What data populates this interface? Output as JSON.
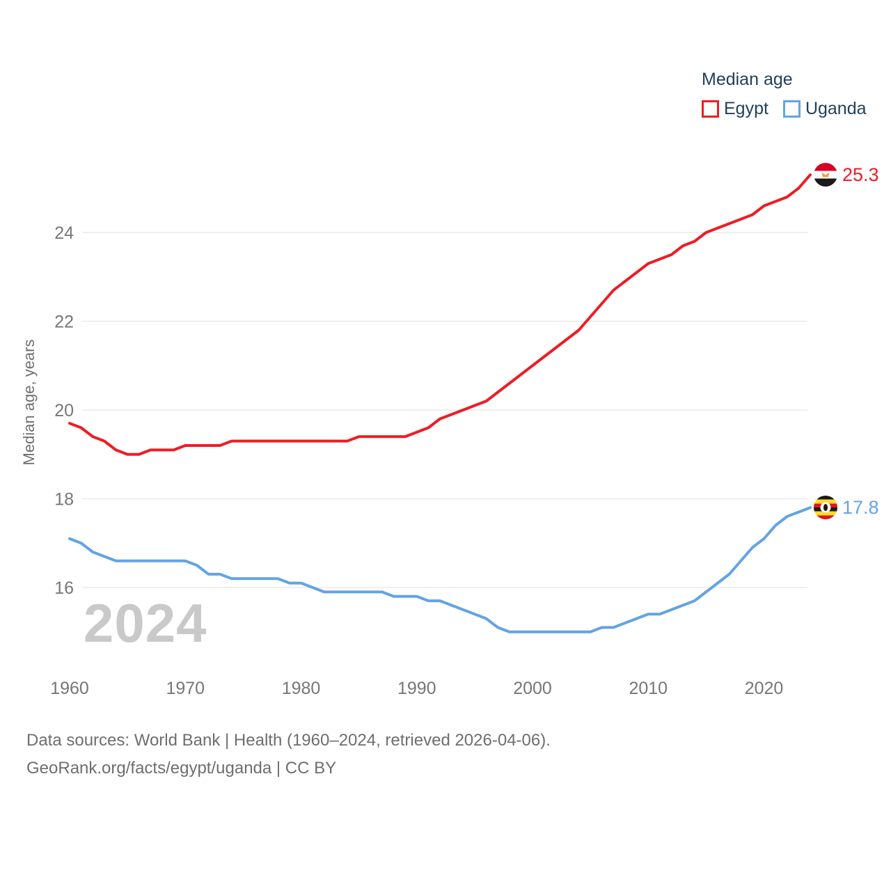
{
  "page": {
    "background": "#ffffff"
  },
  "legend": {
    "title": "Median age",
    "items": [
      {
        "label": "Egypt",
        "color": "#ee1c25"
      },
      {
        "label": "Uganda",
        "color": "#64a3e4"
      }
    ]
  },
  "watermark": "2024",
  "end_labels": [
    {
      "series": "Egypt",
      "value": "25.3",
      "color": "#ee1c25",
      "flag": "egypt-flag-icon"
    },
    {
      "series": "Uganda",
      "value": "17.8",
      "color": "#64a3e4",
      "flag": "uganda-flag-icon"
    }
  ],
  "footer": {
    "line1": "Data sources: World Bank | Health (1960–2024, retrieved 2026-04-06).",
    "line2": "GeoRank.org/facts/egypt/uganda | CC BY"
  },
  "chart_data": {
    "type": "line",
    "title": "Median age",
    "xlabel": "",
    "ylabel": "Median age, years",
    "x_range": [
      1960,
      2024
    ],
    "y_view_range": [
      14.6,
      25.7
    ],
    "x_ticks": [
      1960,
      1970,
      1980,
      1990,
      2000,
      2010,
      2020
    ],
    "y_ticks": [
      16,
      18,
      20,
      22,
      24
    ],
    "grid": "horizontal",
    "legend_position": "top-right",
    "colors": {
      "gridline": "#eaeaea",
      "tick_text": "#767676",
      "legend_text": "#233f5c",
      "watermark": "#c9c9c9",
      "footer_text": "#6e6e6e"
    },
    "x": [
      1960,
      1961,
      1962,
      1963,
      1964,
      1965,
      1966,
      1967,
      1968,
      1969,
      1970,
      1971,
      1972,
      1973,
      1974,
      1975,
      1976,
      1977,
      1978,
      1979,
      1980,
      1981,
      1982,
      1983,
      1984,
      1985,
      1986,
      1987,
      1988,
      1989,
      1990,
      1991,
      1992,
      1993,
      1994,
      1995,
      1996,
      1997,
      1998,
      1999,
      2000,
      2001,
      2002,
      2003,
      2004,
      2005,
      2006,
      2007,
      2008,
      2009,
      2010,
      2011,
      2012,
      2013,
      2014,
      2015,
      2016,
      2017,
      2018,
      2019,
      2020,
      2021,
      2022,
      2023,
      2024
    ],
    "series": [
      {
        "name": "Egypt",
        "color": "#ee1c25",
        "final_value": 25.3,
        "values": [
          19.7,
          19.6,
          19.4,
          19.3,
          19.1,
          19.0,
          19.0,
          19.1,
          19.1,
          19.1,
          19.2,
          19.2,
          19.2,
          19.2,
          19.3,
          19.3,
          19.3,
          19.3,
          19.3,
          19.3,
          19.3,
          19.3,
          19.3,
          19.3,
          19.3,
          19.4,
          19.4,
          19.4,
          19.4,
          19.4,
          19.5,
          19.6,
          19.8,
          19.9,
          20.0,
          20.1,
          20.2,
          20.4,
          20.6,
          20.8,
          21.0,
          21.2,
          21.4,
          21.6,
          21.8,
          22.1,
          22.4,
          22.7,
          22.9,
          23.1,
          23.3,
          23.4,
          23.5,
          23.7,
          23.8,
          24.0,
          24.1,
          24.2,
          24.3,
          24.4,
          24.6,
          24.7,
          24.8,
          25.0,
          25.3
        ]
      },
      {
        "name": "Uganda",
        "color": "#64a3e4",
        "final_value": 17.8,
        "values": [
          17.1,
          17.0,
          16.8,
          16.7,
          16.6,
          16.6,
          16.6,
          16.6,
          16.6,
          16.6,
          16.6,
          16.5,
          16.3,
          16.3,
          16.2,
          16.2,
          16.2,
          16.2,
          16.2,
          16.1,
          16.1,
          16.0,
          15.9,
          15.9,
          15.9,
          15.9,
          15.9,
          15.9,
          15.8,
          15.8,
          15.8,
          15.7,
          15.7,
          15.6,
          15.5,
          15.4,
          15.3,
          15.1,
          15.0,
          15.0,
          15.0,
          15.0,
          15.0,
          15.0,
          15.0,
          15.0,
          15.1,
          15.1,
          15.2,
          15.3,
          15.4,
          15.4,
          15.5,
          15.6,
          15.7,
          15.9,
          16.1,
          16.3,
          16.6,
          16.9,
          17.1,
          17.4,
          17.6,
          17.7,
          17.8
        ]
      }
    ]
  }
}
